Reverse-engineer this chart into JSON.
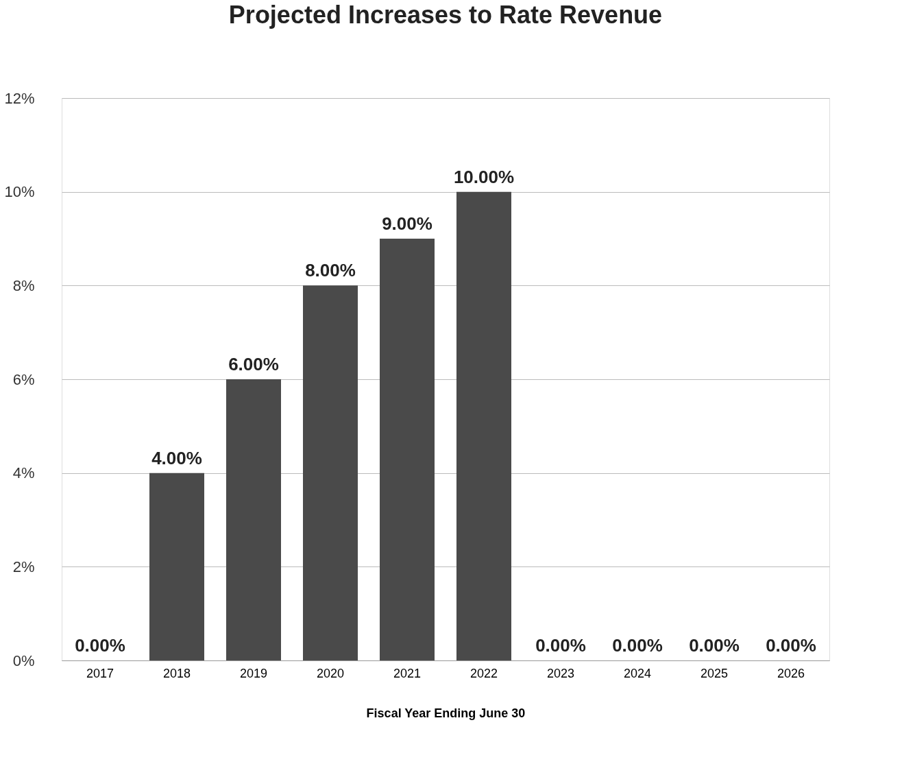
{
  "chart_data": {
    "type": "bar",
    "title": "Projected Increases to Rate Revenue",
    "xlabel": "Fiscal Year Ending June 30",
    "categories": [
      "2017",
      "2018",
      "2019",
      "2020",
      "2021",
      "2022",
      "2023",
      "2024",
      "2025",
      "2026"
    ],
    "values": [
      0,
      4,
      6,
      8,
      9,
      10,
      0,
      0,
      0,
      0
    ],
    "value_labels": [
      "0.00%",
      "4.00%",
      "6.00%",
      "8.00%",
      "9.00%",
      "10.00%",
      "0.00%",
      "0.00%",
      "0.00%",
      "0.00%"
    ],
    "color": "#4a4a4a",
    "ylim": [
      0,
      12
    ],
    "yticks": [
      {
        "value": 0,
        "label": "0%"
      },
      {
        "value": 2,
        "label": "2%"
      },
      {
        "value": 4,
        "label": "4%"
      },
      {
        "value": 6,
        "label": "6%"
      },
      {
        "value": 8,
        "label": "8%"
      },
      {
        "value": 10,
        "label": "10%"
      },
      {
        "value": 12,
        "label": "12%"
      }
    ],
    "grid": "y"
  }
}
